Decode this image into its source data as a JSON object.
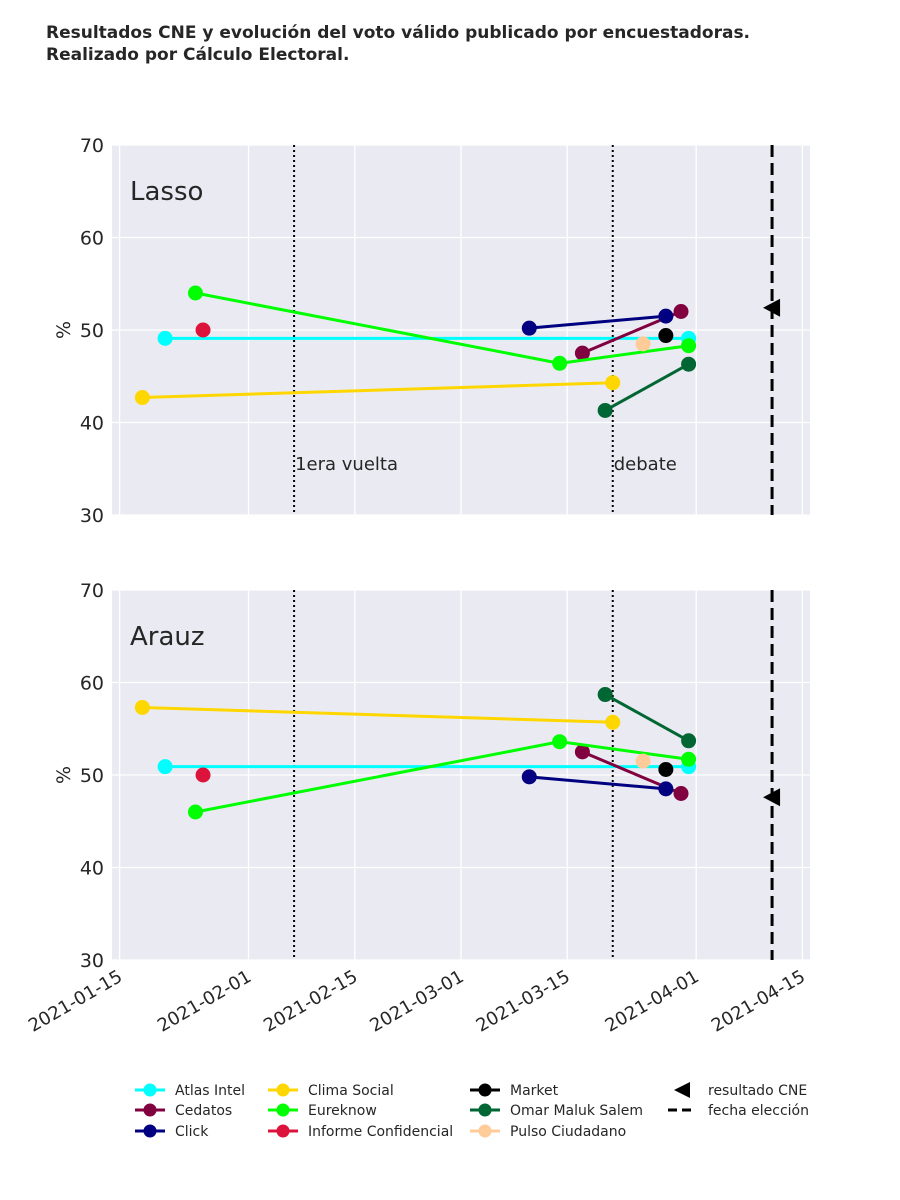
{
  "title": {
    "line1": "Resultados CNE y evolución del voto válido publicado por encuestadoras.",
    "line2": "Realizado por Cálculo Electoral."
  },
  "colors": {
    "panel_bg": "#eaeaf2",
    "grid": "#ffffff",
    "Atlas Intel": "#00ffff",
    "Cedatos": "#800040",
    "Click": "#000080",
    "Clima Social": "#ffd700",
    "Eureknow": "#00ff00",
    "Informe Confidencial": "#dc143c",
    "Market": "#000000",
    "Omar Maluk Salem": "#006633",
    "Pulso Ciudadano": "#ffcc99"
  },
  "chart_data": {
    "type": "line",
    "ylabel": "%",
    "ylim": [
      30,
      70
    ],
    "yticks": [
      30,
      40,
      50,
      60,
      70
    ],
    "xlim": [
      "2021-01-14",
      "2021-04-16"
    ],
    "xticks": [
      "2021-01-15",
      "2021-02-01",
      "2021-02-15",
      "2021-03-01",
      "2021-03-15",
      "2021-04-01",
      "2021-04-15"
    ],
    "xtick_labels": [
      "2021-01-15",
      "2021-02-01",
      "2021-02-15",
      "2021-03-01",
      "2021-03-15",
      "2021-04-01",
      "2021-04-15"
    ],
    "vlines": [
      {
        "date": "2021-02-07",
        "label": "1era vuelta",
        "style": "dotted"
      },
      {
        "date": "2021-03-21",
        "label": "debate",
        "style": "dotted"
      },
      {
        "date": "2021-04-11",
        "label": "",
        "style": "dashed"
      }
    ],
    "panels": [
      {
        "title": "Lasso",
        "cne_result": {
          "date": "2021-04-11",
          "value": 52.4
        },
        "series": [
          {
            "name": "Atlas Intel",
            "points": [
              [
                "2021-01-21",
                49.1
              ],
              [
                "2021-03-31",
                49.1
              ]
            ]
          },
          {
            "name": "Cedatos",
            "points": [
              [
                "2021-03-17",
                47.5
              ],
              [
                "2021-03-30",
                52.0
              ]
            ]
          },
          {
            "name": "Click",
            "points": [
              [
                "2021-03-10",
                50.2
              ],
              [
                "2021-03-28",
                51.5
              ]
            ]
          },
          {
            "name": "Clima Social",
            "points": [
              [
                "2021-01-18",
                42.7
              ],
              [
                "2021-03-21",
                44.3
              ]
            ]
          },
          {
            "name": "Eureknow",
            "points": [
              [
                "2021-01-25",
                54.0
              ],
              [
                "2021-03-14",
                46.4
              ],
              [
                "2021-03-31",
                48.3
              ]
            ]
          },
          {
            "name": "Informe Confidencial",
            "points": [
              [
                "2021-01-26",
                50.0
              ]
            ]
          },
          {
            "name": "Market",
            "points": [
              [
                "2021-03-28",
                49.4
              ]
            ]
          },
          {
            "name": "Omar Maluk Salem",
            "points": [
              [
                "2021-03-20",
                41.3
              ],
              [
                "2021-03-31",
                46.3
              ]
            ]
          },
          {
            "name": "Pulso Ciudadano",
            "points": [
              [
                "2021-03-25",
                48.5
              ]
            ]
          }
        ]
      },
      {
        "title": "Arauz",
        "cne_result": {
          "date": "2021-04-11",
          "value": 47.6
        },
        "series": [
          {
            "name": "Atlas Intel",
            "points": [
              [
                "2021-01-21",
                50.9
              ],
              [
                "2021-03-31",
                50.9
              ]
            ]
          },
          {
            "name": "Cedatos",
            "points": [
              [
                "2021-03-17",
                52.5
              ],
              [
                "2021-03-30",
                48.0
              ]
            ]
          },
          {
            "name": "Click",
            "points": [
              [
                "2021-03-10",
                49.8
              ],
              [
                "2021-03-28",
                48.5
              ]
            ]
          },
          {
            "name": "Clima Social",
            "points": [
              [
                "2021-01-18",
                57.3
              ],
              [
                "2021-03-21",
                55.7
              ]
            ]
          },
          {
            "name": "Eureknow",
            "points": [
              [
                "2021-01-25",
                46.0
              ],
              [
                "2021-03-14",
                53.6
              ],
              [
                "2021-03-31",
                51.7
              ]
            ]
          },
          {
            "name": "Informe Confidencial",
            "points": [
              [
                "2021-01-26",
                50.0
              ]
            ]
          },
          {
            "name": "Market",
            "points": [
              [
                "2021-03-28",
                50.6
              ]
            ]
          },
          {
            "name": "Omar Maluk Salem",
            "points": [
              [
                "2021-03-20",
                58.7
              ],
              [
                "2021-03-31",
                53.7
              ]
            ]
          },
          {
            "name": "Pulso Ciudadano",
            "points": [
              [
                "2021-03-25",
                51.5
              ]
            ]
          }
        ]
      }
    ],
    "legend": {
      "placement": "bottom",
      "entries": [
        {
          "label": "Atlas Intel",
          "kind": "line-marker"
        },
        {
          "label": "Cedatos",
          "kind": "line-marker"
        },
        {
          "label": "Click",
          "kind": "line-marker"
        },
        {
          "label": "Clima Social",
          "kind": "line-marker"
        },
        {
          "label": "Eureknow",
          "kind": "line-marker"
        },
        {
          "label": "Informe Confidencial",
          "kind": "line-marker"
        },
        {
          "label": "Market",
          "kind": "line-marker"
        },
        {
          "label": "Omar Maluk Salem",
          "kind": "line-marker"
        },
        {
          "label": "Pulso Ciudadano",
          "kind": "line-marker"
        },
        {
          "label": "resultado CNE",
          "kind": "triangle"
        },
        {
          "label": "fecha elección",
          "kind": "dashed"
        }
      ]
    }
  }
}
